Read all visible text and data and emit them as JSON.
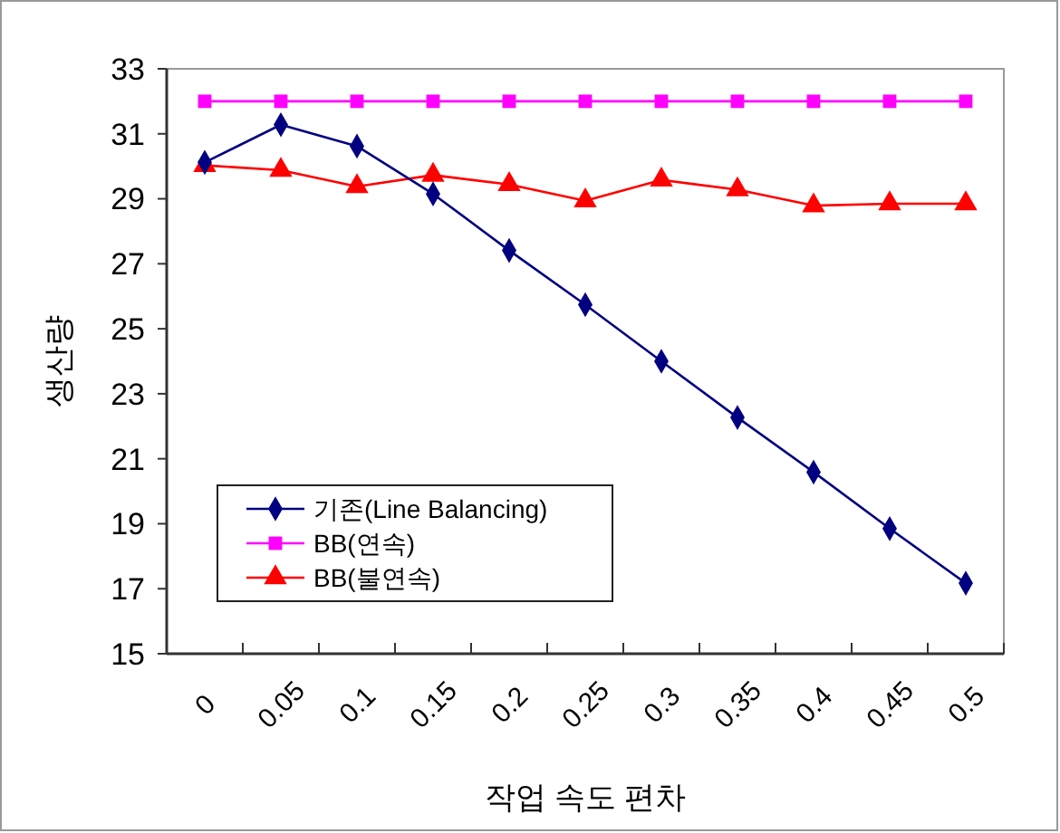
{
  "chart_data": {
    "type": "line",
    "xlabel": "작업 속도 편차",
    "ylabel": "생산량",
    "categories": [
      "0",
      "0.05",
      "0.1",
      "0.15",
      "0.2",
      "0.25",
      "0.3",
      "0.35",
      "0.4",
      "0.45",
      "0.5"
    ],
    "series": [
      {
        "name": "기존(Line Balancing)",
        "color": "#000080",
        "marker": "diamond",
        "values": [
          30.12,
          31.28,
          30.62,
          29.15,
          27.41,
          25.74,
          24.0,
          22.27,
          20.59,
          18.85,
          17.17
        ]
      },
      {
        "name": "BB(연속)",
        "color": "#ff00ff",
        "marker": "square",
        "values": [
          32,
          32,
          32,
          32,
          32,
          32,
          32,
          32,
          32,
          32,
          32
        ]
      },
      {
        "name": "BB(불연속)",
        "color": "#ff0000",
        "marker": "triangle",
        "values": [
          30.03,
          29.88,
          29.38,
          29.73,
          29.44,
          28.94,
          29.58,
          29.28,
          28.79,
          28.85,
          28.85
        ]
      }
    ],
    "ylim": [
      15,
      33
    ],
    "yticks": [
      15,
      17,
      19,
      21,
      23,
      25,
      27,
      29,
      31,
      33
    ],
    "grid": false,
    "legend": "bottom left"
  }
}
